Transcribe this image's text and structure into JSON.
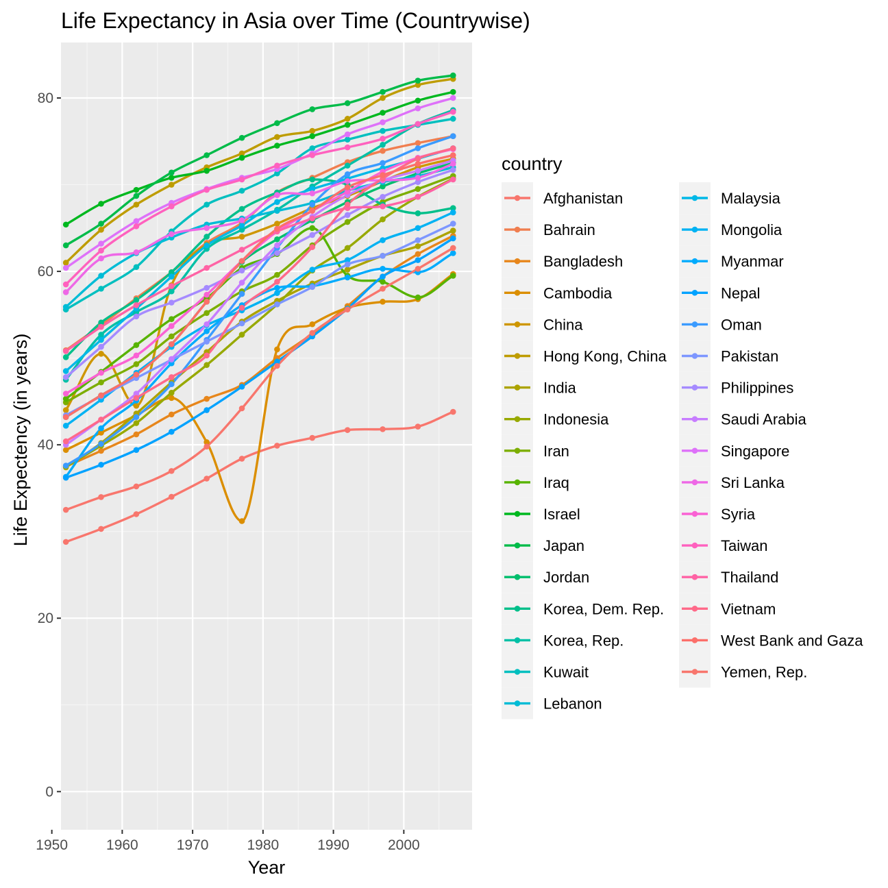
{
  "chart_data": {
    "type": "line",
    "title": "Life Expectancy in Asia over Time (Countrywise)",
    "xlabel": "Year",
    "ylabel": "Life Expectency (in years)",
    "xlim": [
      1951.3,
      2009.7
    ],
    "ylim": [
      -4.4,
      86.4
    ],
    "x_ticks": [
      1950,
      1960,
      1970,
      1980,
      1990,
      2000
    ],
    "x_tick_labels": [
      "1950",
      "1960",
      "1970",
      "1980",
      "1990",
      "2000"
    ],
    "y_ticks": [
      0,
      20,
      40,
      60,
      80
    ],
    "y_tick_labels": [
      "0",
      "20",
      "40",
      "60",
      "80"
    ],
    "grid": true,
    "legend": {
      "title": "country",
      "position": "right",
      "columns": 2
    },
    "x": [
      1952,
      1957,
      1962,
      1967,
      1972,
      1977,
      1982,
      1987,
      1992,
      1997,
      2002,
      2007
    ],
    "series": [
      {
        "name": "Afghanistan",
        "color": "#F8766D",
        "values": [
          28.8,
          30.3,
          32.0,
          34.0,
          36.1,
          38.4,
          39.9,
          40.8,
          41.7,
          41.8,
          42.1,
          43.8
        ]
      },
      {
        "name": "Bahrain",
        "color": "#F07E4F",
        "values": [
          50.9,
          53.8,
          56.9,
          59.9,
          63.3,
          65.6,
          69.1,
          70.8,
          72.6,
          73.9,
          74.8,
          75.6
        ]
      },
      {
        "name": "Bangladesh",
        "color": "#E7861B",
        "values": [
          37.5,
          39.3,
          41.2,
          43.5,
          45.3,
          46.9,
          50.0,
          52.8,
          56.0,
          59.4,
          62.0,
          64.1
        ]
      },
      {
        "name": "Cambodia",
        "color": "#DB8E00",
        "values": [
          39.4,
          41.4,
          43.4,
          45.4,
          40.3,
          31.2,
          51.0,
          53.9,
          55.8,
          56.5,
          56.8,
          59.7
        ]
      },
      {
        "name": "China",
        "color": "#CE9600",
        "values": [
          44.0,
          50.5,
          44.5,
          58.4,
          63.1,
          64.0,
          65.5,
          67.3,
          68.7,
          70.4,
          72.0,
          73.0
        ]
      },
      {
        "name": "Hong Kong, China",
        "color": "#BE9C00",
        "values": [
          61.0,
          64.8,
          67.7,
          70.0,
          72.0,
          73.6,
          75.5,
          76.2,
          77.6,
          80.0,
          81.5,
          82.2
        ]
      },
      {
        "name": "India",
        "color": "#ACA300",
        "values": [
          37.4,
          40.2,
          43.6,
          47.2,
          50.7,
          54.2,
          56.6,
          58.6,
          60.2,
          61.8,
          62.9,
          64.7
        ]
      },
      {
        "name": "Indonesia",
        "color": "#97A900",
        "values": [
          37.5,
          39.9,
          42.5,
          46.0,
          49.2,
          52.7,
          56.2,
          60.1,
          62.7,
          66.0,
          68.6,
          70.7
        ]
      },
      {
        "name": "Iran",
        "color": "#7CAE00",
        "values": [
          44.9,
          47.2,
          49.3,
          52.5,
          55.2,
          57.7,
          59.6,
          63.0,
          65.7,
          68.0,
          69.5,
          71.0
        ]
      },
      {
        "name": "Iraq",
        "color": "#57B300",
        "values": [
          45.3,
          48.4,
          51.5,
          54.5,
          56.9,
          60.4,
          62.0,
          65.0,
          59.5,
          58.8,
          57.0,
          59.5
        ]
      },
      {
        "name": "Israel",
        "color": "#00B81F",
        "values": [
          65.4,
          67.8,
          69.4,
          70.8,
          71.6,
          73.1,
          74.5,
          75.6,
          76.9,
          78.3,
          79.7,
          80.7
        ]
      },
      {
        "name": "Japan",
        "color": "#00BB49",
        "values": [
          63.0,
          65.5,
          68.7,
          71.4,
          73.4,
          75.4,
          77.1,
          78.7,
          79.4,
          80.7,
          82.0,
          82.6
        ]
      },
      {
        "name": "Jordan",
        "color": "#00BE6C",
        "values": [
          43.2,
          45.7,
          48.1,
          51.6,
          56.5,
          61.1,
          63.7,
          65.9,
          68.0,
          69.8,
          71.3,
          72.5
        ]
      },
      {
        "name": "Korea, Dem. Rep.",
        "color": "#00BF8A",
        "values": [
          50.1,
          54.1,
          56.7,
          59.9,
          64.0,
          67.2,
          69.1,
          70.6,
          70.0,
          67.7,
          66.7,
          67.3
        ]
      },
      {
        "name": "Korea, Rep.",
        "color": "#00C0A6",
        "values": [
          47.5,
          52.7,
          55.3,
          57.7,
          62.6,
          64.8,
          67.1,
          69.8,
          72.2,
          74.6,
          77.0,
          78.6
        ]
      },
      {
        "name": "Kuwait",
        "color": "#00BFBF",
        "values": [
          55.6,
          58.0,
          60.5,
          64.6,
          67.7,
          69.3,
          71.3,
          74.2,
          75.2,
          76.2,
          76.9,
          77.6
        ]
      },
      {
        "name": "Lebanon",
        "color": "#00BCD6",
        "values": [
          55.9,
          59.5,
          62.1,
          63.9,
          65.4,
          66.1,
          66.98,
          67.9,
          69.3,
          70.3,
          71.0,
          72.0
        ]
      },
      {
        "name": "Malaysia",
        "color": "#00B8E7",
        "values": [
          48.5,
          52.1,
          55.7,
          59.4,
          63.0,
          65.3,
          68.0,
          69.5,
          70.7,
          71.9,
          73.0,
          74.2
        ]
      },
      {
        "name": "Mongolia",
        "color": "#00B2F3",
        "values": [
          42.2,
          45.2,
          48.3,
          51.3,
          53.8,
          55.5,
          57.5,
          60.2,
          61.3,
          63.6,
          65.0,
          66.8
        ]
      },
      {
        "name": "Myanmar",
        "color": "#00ABFD",
        "values": [
          36.3,
          41.9,
          45.1,
          49.4,
          53.1,
          56.1,
          58.1,
          58.3,
          59.3,
          60.3,
          59.9,
          62.1
        ]
      },
      {
        "name": "Nepal",
        "color": "#00A2FF",
        "values": [
          36.2,
          37.7,
          39.4,
          41.5,
          44.0,
          46.7,
          49.6,
          52.5,
          55.7,
          59.4,
          61.3,
          63.8
        ]
      },
      {
        "name": "Oman",
        "color": "#3B9BFF",
        "values": [
          37.6,
          40.1,
          43.2,
          46.99,
          52.1,
          57.4,
          62.7,
          67.7,
          71.2,
          72.5,
          74.2,
          75.6
        ]
      },
      {
        "name": "Pakistan",
        "color": "#7D96FF",
        "values": [
          43.4,
          45.6,
          47.7,
          49.8,
          51.9,
          54.0,
          56.2,
          58.2,
          60.8,
          61.8,
          63.6,
          65.5
        ]
      },
      {
        "name": "Philippines",
        "color": "#A58AFF",
        "values": [
          47.8,
          51.3,
          54.8,
          56.4,
          58.1,
          60.1,
          62.1,
          64.2,
          66.5,
          68.6,
          70.3,
          71.7
        ]
      },
      {
        "name": "Saudi Arabia",
        "color": "#C77CFF",
        "values": [
          40.0,
          42.9,
          45.9,
          49.9,
          53.9,
          58.7,
          63.0,
          66.3,
          68.8,
          70.5,
          71.6,
          72.8
        ]
      },
      {
        "name": "Singapore",
        "color": "#DE71F9",
        "values": [
          60.4,
          63.2,
          65.8,
          67.9,
          69.5,
          70.8,
          71.8,
          73.6,
          75.8,
          77.2,
          78.8,
          80.0
        ]
      },
      {
        "name": "Sri Lanka",
        "color": "#EE68E6",
        "values": [
          57.6,
          61.5,
          62.2,
          64.3,
          65.0,
          65.9,
          68.8,
          69.0,
          70.4,
          70.5,
          70.8,
          72.4
        ]
      },
      {
        "name": "Syria",
        "color": "#FA62D4",
        "values": [
          45.9,
          48.3,
          50.3,
          53.7,
          57.3,
          61.2,
          64.6,
          66.97,
          69.2,
          71.5,
          73.1,
          74.1
        ]
      },
      {
        "name": "Taiwan",
        "color": "#FF61BE",
        "values": [
          58.5,
          62.4,
          65.2,
          67.5,
          69.4,
          70.6,
          72.2,
          73.4,
          74.3,
          75.3,
          77.0,
          78.4
        ]
      },
      {
        "name": "Thailand",
        "color": "#FF63A5",
        "values": [
          50.8,
          53.6,
          56.1,
          58.3,
          60.4,
          62.5,
          64.6,
          66.1,
          67.3,
          67.5,
          68.6,
          70.6
        ]
      },
      {
        "name": "Vietnam",
        "color": "#FF6989",
        "values": [
          40.4,
          42.9,
          45.4,
          47.8,
          50.3,
          55.8,
          58.8,
          62.8,
          67.7,
          70.7,
          73.0,
          74.2
        ]
      },
      {
        "name": "West Bank and Gaza",
        "color": "#FC6F6A",
        "values": [
          43.2,
          45.7,
          48.1,
          51.6,
          56.5,
          61.2,
          64.9,
          67.0,
          69.7,
          71.1,
          72.4,
          73.4
        ]
      },
      {
        "name": "Yemen, Rep.",
        "color": "#F8766D",
        "values": [
          32.5,
          33.97,
          35.2,
          36.98,
          39.8,
          44.2,
          49.1,
          52.9,
          55.6,
          58.0,
          60.3,
          62.7
        ]
      }
    ]
  }
}
